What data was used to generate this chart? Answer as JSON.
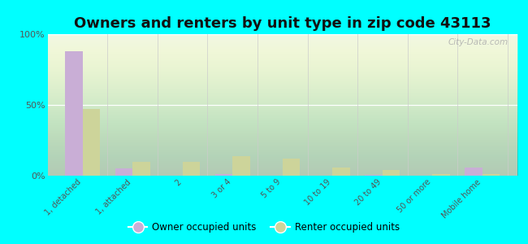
{
  "title": "Owners and renters by unit type in zip code 43113",
  "categories": [
    "1, detached",
    "1, attached",
    "2",
    "3 or 4",
    "5 to 9",
    "10 to 19",
    "20 to 49",
    "50 or more",
    "Mobile home"
  ],
  "owner_values": [
    88,
    5,
    0,
    1,
    0,
    0,
    0.5,
    0,
    6
  ],
  "renter_values": [
    47,
    10,
    10,
    14,
    12,
    6,
    4,
    1,
    1
  ],
  "owner_color": "#c9aed6",
  "renter_color": "#cdd49a",
  "background_color": "#00ffff",
  "plot_bg": "#eef5e0",
  "ylim": [
    0,
    100
  ],
  "yticks": [
    0,
    50,
    100
  ],
  "ytick_labels": [
    "0%",
    "50%",
    "100%"
  ],
  "legend_owner": "Owner occupied units",
  "legend_renter": "Renter occupied units",
  "title_fontsize": 13,
  "bar_width": 0.35,
  "watermark": "City-Data.com"
}
